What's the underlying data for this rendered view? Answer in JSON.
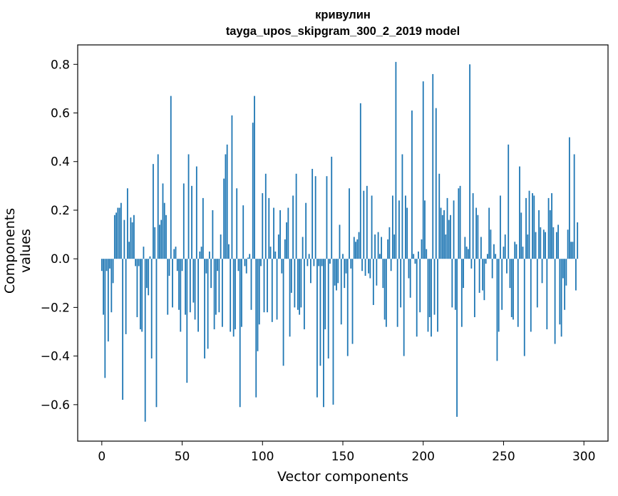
{
  "chart_data": {
    "type": "bar",
    "title": "кривулин",
    "subtitle": "tayga_upos_skipgram_300_2_2019 model",
    "xlabel": "Vector components",
    "ylabel": "Components values",
    "xlim": [
      -15,
      315
    ],
    "ylim": [
      -0.75,
      0.88
    ],
    "xticks": [
      0,
      50,
      100,
      150,
      200,
      250,
      300
    ],
    "yticks": [
      -0.6,
      -0.4,
      -0.2,
      0.0,
      0.2,
      0.4,
      0.6,
      0.8
    ],
    "ytick_labels": [
      "−0.6",
      "−0.4",
      "−0.2",
      "0.0",
      "0.2",
      "0.4",
      "0.6",
      "0.8"
    ],
    "grid": false,
    "bar_color": "#1f77b4",
    "values": [
      -0.05,
      -0.23,
      -0.49,
      -0.05,
      -0.34,
      -0.04,
      -0.22,
      -0.1,
      0.18,
      0.19,
      0.21,
      0.21,
      0.23,
      -0.58,
      0.16,
      -0.31,
      0.29,
      0.07,
      0.17,
      0.15,
      0.18,
      -0.03,
      -0.24,
      -0.03,
      -0.29,
      -0.3,
      0.05,
      -0.67,
      -0.12,
      -0.15,
      0.01,
      -0.41,
      0.39,
      0.13,
      -0.61,
      0.43,
      0.14,
      0.16,
      0.31,
      0.23,
      0.18,
      -0.23,
      -0.07,
      0.67,
      -0.2,
      0.04,
      0.05,
      -0.05,
      -0.21,
      -0.3,
      -0.05,
      0.31,
      -0.23,
      -0.51,
      0.43,
      -0.22,
      0.3,
      -0.18,
      -0.25,
      0.38,
      -0.3,
      0.03,
      0.05,
      0.25,
      -0.41,
      -0.06,
      -0.37,
      0.03,
      -0.12,
      0.2,
      -0.29,
      -0.23,
      -0.05,
      -0.22,
      0.1,
      -0.28,
      0.33,
      0.43,
      0.47,
      0.06,
      -0.3,
      0.59,
      -0.32,
      -0.29,
      0.29,
      -0.05,
      -0.61,
      -0.28,
      0.22,
      -0.03,
      -0.06,
      0.005,
      0.02,
      -0.21,
      0.56,
      0.67,
      -0.57,
      -0.38,
      -0.27,
      -0.03,
      0.27,
      -0.22,
      0.35,
      -0.22,
      0.25,
      0.05,
      -0.26,
      0.21,
      0.03,
      -0.25,
      0.1,
      0.2,
      -0.06,
      -0.44,
      0.08,
      0.15,
      0.21,
      -0.32,
      -0.14,
      0.26,
      -0.2,
      0.35,
      -0.21,
      -0.23,
      -0.2,
      0.09,
      -0.29,
      0.23,
      -0.03,
      0.02,
      -0.1,
      0.37,
      -0.03,
      0.34,
      -0.57,
      -0.03,
      -0.44,
      -0.03,
      -0.61,
      -0.29,
      0.34,
      -0.41,
      -0.02,
      0.42,
      -0.6,
      -0.11,
      -0.13,
      -0.1,
      0.14,
      -0.27,
      0.02,
      -0.12,
      -0.06,
      -0.4,
      0.29,
      -0.04,
      -0.35,
      0.09,
      0.07,
      0.08,
      0.11,
      0.64,
      -0.05,
      0.28,
      -0.07,
      0.3,
      -0.06,
      -0.08,
      0.26,
      -0.19,
      0.1,
      -0.11,
      0.11,
      0.02,
      0.09,
      -0.12,
      -0.25,
      -0.28,
      0.08,
      0.13,
      -0.05,
      0.26,
      0.1,
      0.81,
      -0.28,
      0.24,
      -0.2,
      0.43,
      -0.4,
      0.26,
      0.21,
      -0.08,
      -0.16,
      0.61,
      0.02,
      -0.02,
      -0.32,
      0.03,
      -0.22,
      0.08,
      0.73,
      0.24,
      0.04,
      -0.3,
      -0.24,
      -0.32,
      0.76,
      -0.23,
      0.62,
      -0.3,
      0.35,
      0.21,
      0.18,
      0.2,
      0.1,
      0.25,
      0.16,
      0.18,
      -0.2,
      0.24,
      -0.21,
      -0.65,
      0.29,
      0.3,
      -0.28,
      -0.12,
      0.09,
      0.05,
      0.04,
      0.8,
      -0.04,
      0.27,
      -0.24,
      0.21,
      0.18,
      -0.14,
      0.09,
      -0.13,
      -0.17,
      -0.02,
      0.02,
      0.21,
      0.12,
      -0.08,
      0.06,
      0.02,
      -0.42,
      -0.3,
      0.26,
      -0.21,
      0.05,
      0.1,
      -0.06,
      0.47,
      -0.12,
      -0.24,
      -0.25,
      0.07,
      0.06,
      -0.28,
      0.38,
      0.19,
      0.05,
      -0.4,
      0.25,
      0.1,
      0.28,
      -0.3,
      0.27,
      0.26,
      0.11,
      -0.2,
      0.2,
      0.13,
      -0.1,
      0.12,
      0.11,
      -0.29,
      0.25,
      0.2,
      0.27,
      0.13,
      -0.35,
      0.11,
      0.14,
      -0.27,
      -0.32,
      -0.08,
      -0.21,
      -0.11,
      0.12,
      0.5,
      0.07,
      0.07,
      0.43,
      -0.13,
      0.15
    ]
  }
}
